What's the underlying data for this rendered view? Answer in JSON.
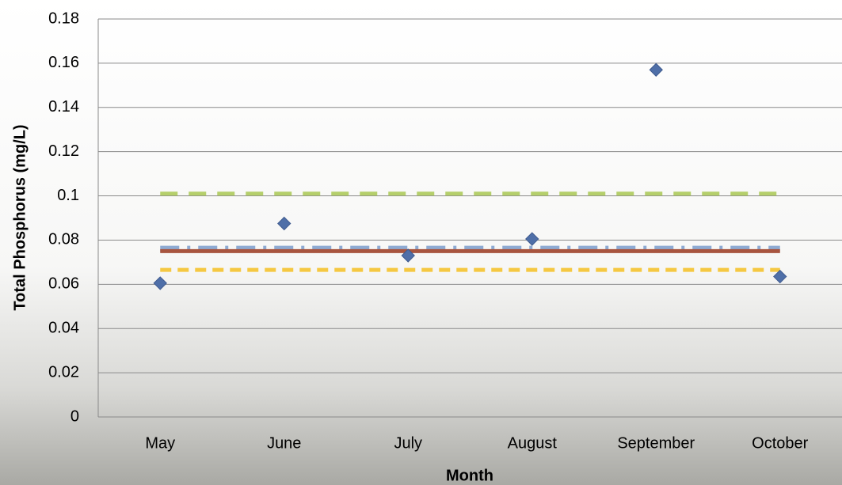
{
  "chart_data": {
    "type": "line",
    "x_label": "Month",
    "y_label": "Total Phosphorus (mg/L)",
    "categories": [
      "May",
      "June",
      "July",
      "August",
      "September",
      "October"
    ],
    "series": [
      {
        "color": "#4f6fa8",
        "style": "markers",
        "values": [
          0.0605,
          0.0875,
          0.073,
          0.0805,
          0.157,
          0.0635
        ]
      },
      {
        "color": "#b5cf6b",
        "style": "dashed",
        "values": [
          0.101,
          0.101,
          0.101,
          0.101,
          0.101,
          0.101
        ]
      },
      {
        "color": "#8eaad2",
        "style": "dashdot",
        "values": [
          0.076,
          0.076,
          0.076,
          0.076,
          0.076,
          0.076
        ]
      },
      {
        "color": "#a8553f",
        "style": "solid",
        "values": [
          0.075,
          0.075,
          0.075,
          0.075,
          0.075,
          0.075
        ]
      },
      {
        "color": "#f5c842",
        "style": "shortdash",
        "values": [
          0.0665,
          0.0665,
          0.0665,
          0.0665,
          0.0665,
          0.0665
        ]
      }
    ],
    "ylim": [
      0,
      0.18
    ],
    "yticks": [
      0,
      0.02,
      0.04,
      0.06,
      0.08,
      0.1,
      0.12,
      0.14,
      0.16,
      0.18
    ],
    "grid": true
  }
}
